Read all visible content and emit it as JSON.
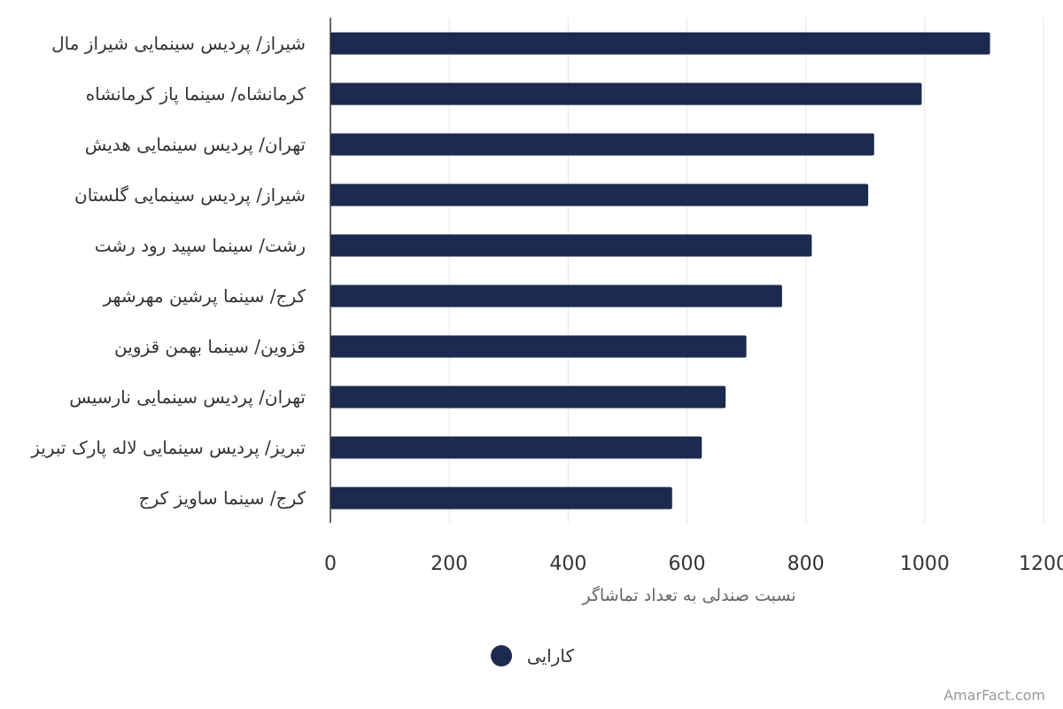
{
  "chart_data": {
    "type": "bar",
    "orientation": "horizontal",
    "categories": [
      "شیراز/ پردیس سینمایی شیراز مال",
      "کرمانشاه/ سینما پاز کرمانشاه",
      "تهران/ پردیس سینمایی هدیش",
      "شیراز/ پردیس سینمایی گلستان",
      "رشت/ سینما سپید رود رشت",
      "کرج/ سینما پرشین مهرشهر",
      "قزوین/ سینما بهمن قزوین",
      "تهران/ پردیس سینمایی نارسیس",
      "تبریز/ پردیس سینمایی لاله پارک تبریز",
      "کرج/ سینما ساویز کرج"
    ],
    "series": [
      {
        "name": "کارایی",
        "values": [
          1110,
          995,
          915,
          905,
          810,
          760,
          700,
          665,
          625,
          575
        ]
      }
    ],
    "xlabel": "نسبت صندلی به تعداد تماشاگر",
    "xlim": [
      0,
      1200
    ],
    "xticks": [
      "0",
      "200",
      "400",
      "600",
      "800",
      "1000",
      "1200"
    ],
    "grid": true,
    "legend_position": "bottom",
    "bar_color": "#1b2a4e",
    "gridline_color": "#e6e6e6",
    "axis_color": "#333333"
  },
  "credit": "AmarFact.com"
}
